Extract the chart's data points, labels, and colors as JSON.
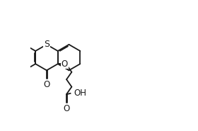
{
  "bg_color": "#ffffff",
  "line_color": "#1a1a1a",
  "label_color": "#1a1a1a",
  "line_width": 1.3,
  "font_size": 8.5,
  "xlim": [
    -1.0,
    7.5
  ],
  "ylim": [
    -4.5,
    3.5
  ]
}
